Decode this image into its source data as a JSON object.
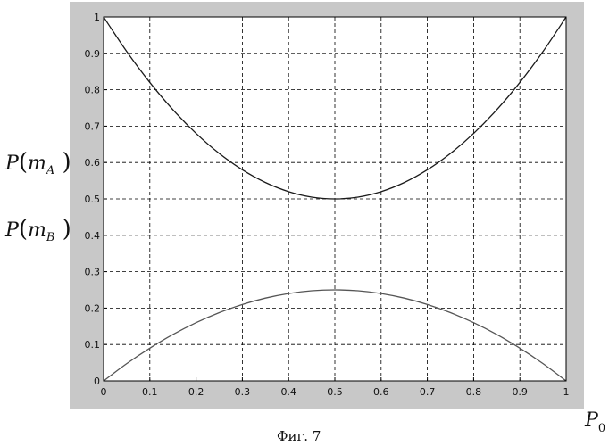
{
  "chart_data": {
    "type": "line",
    "title": "",
    "xlabel": "P",
    "xlabel_sub": "0",
    "ylabels": [
      {
        "main": "P",
        "var": "m",
        "sub": "A"
      },
      {
        "main": "P",
        "var": "m",
        "sub": "B"
      }
    ],
    "xlim": [
      0,
      1
    ],
    "ylim": [
      0,
      1
    ],
    "x_ticks": [
      "0",
      "0.1",
      "0.2",
      "0.3",
      "0.4",
      "0.5",
      "0.6",
      "0.7",
      "0.8",
      "0.9",
      "1"
    ],
    "y_ticks": [
      "0",
      "0.1",
      "0.2",
      "0.3",
      "0.4",
      "0.5",
      "0.6",
      "0.7",
      "0.8",
      "0.9",
      "1"
    ],
    "grid": true,
    "series": [
      {
        "x": [
          0,
          0.05,
          0.1,
          0.15,
          0.2,
          0.25,
          0.3,
          0.35,
          0.4,
          0.45,
          0.5,
          0.55,
          0.6,
          0.65,
          0.7,
          0.75,
          0.8,
          0.85,
          0.9,
          0.95,
          1
        ],
        "values": [
          1,
          0.905,
          0.82,
          0.745,
          0.68,
          0.625,
          0.58,
          0.545,
          0.52,
          0.505,
          0.5,
          0.505,
          0.52,
          0.545,
          0.58,
          0.625,
          0.68,
          0.745,
          0.82,
          0.905,
          1
        ],
        "color": "#1a1a1a"
      },
      {
        "x": [
          0,
          0.05,
          0.1,
          0.15,
          0.2,
          0.25,
          0.3,
          0.35,
          0.4,
          0.45,
          0.5,
          0.55,
          0.6,
          0.65,
          0.7,
          0.75,
          0.8,
          0.85,
          0.9,
          0.95,
          1
        ],
        "values": [
          0,
          0.0475,
          0.09,
          0.1275,
          0.16,
          0.1875,
          0.21,
          0.2275,
          0.24,
          0.2475,
          0.25,
          0.2475,
          0.24,
          0.2275,
          0.21,
          0.1875,
          0.16,
          0.1275,
          0.09,
          0.0475,
          0
        ],
        "color": "#555555"
      }
    ],
    "caption": "Фиг. 7",
    "frame_color": "#c8c8c8"
  }
}
